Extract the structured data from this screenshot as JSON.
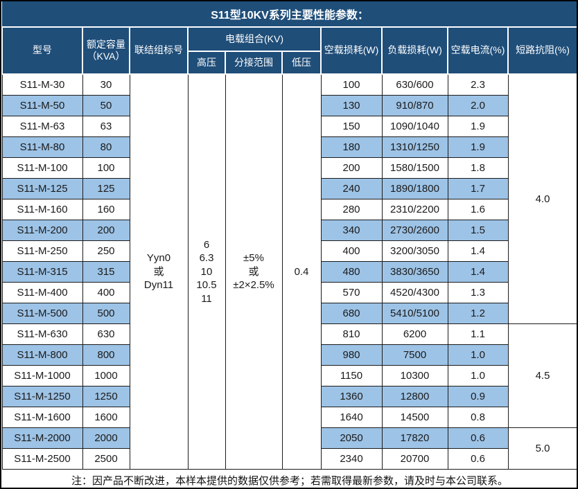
{
  "title": "S11型10KV系列主要性能参数：",
  "header": {
    "model": "型号",
    "capacity_line1": "额定容量",
    "capacity_line2": "（KVA）",
    "connection": "联结组标号",
    "voltage_group": "电载组合(KV)",
    "hv": "高压",
    "tap_range": "分接范围",
    "lv": "低压",
    "no_load_loss": "空载损耗(W)",
    "load_loss": "负载损耗(W)",
    "no_load_current": "空载电流(%)",
    "impedance": "短路抗阻(%)"
  },
  "merged": {
    "connection_lines": [
      "Yyn0",
      "或",
      "Dyn11"
    ],
    "hv_lines": [
      "6",
      "6.3",
      "10",
      "10.5",
      "11"
    ],
    "tap_lines": [
      "±5%",
      "或",
      "±2×2.5%"
    ],
    "lv": "0.4"
  },
  "impedance_groups": [
    {
      "value": "4.0",
      "rows": 12
    },
    {
      "value": "4.5",
      "rows": 5
    },
    {
      "value": "5.0",
      "rows": 2
    }
  ],
  "rows": [
    {
      "model": "S11-M-30",
      "capacity": "30",
      "no_load_loss": "100",
      "load_loss": "630/600",
      "no_load_current": "2.3",
      "highlight": false
    },
    {
      "model": "S11-M-50",
      "capacity": "50",
      "no_load_loss": "130",
      "load_loss": "910/870",
      "no_load_current": "2.0",
      "highlight": true
    },
    {
      "model": "S11-M-63",
      "capacity": "63",
      "no_load_loss": "150",
      "load_loss": "1090/1040",
      "no_load_current": "1.9",
      "highlight": false
    },
    {
      "model": "S11-M-80",
      "capacity": "80",
      "no_load_loss": "180",
      "load_loss": "1310/1250",
      "no_load_current": "1.9",
      "highlight": true
    },
    {
      "model": "S11-M-100",
      "capacity": "100",
      "no_load_loss": "200",
      "load_loss": "1580/1500",
      "no_load_current": "1.8",
      "highlight": false
    },
    {
      "model": "S11-M-125",
      "capacity": "125",
      "no_load_loss": "240",
      "load_loss": "1890/1800",
      "no_load_current": "1.7",
      "highlight": true
    },
    {
      "model": "S11-M-160",
      "capacity": "160",
      "no_load_loss": "280",
      "load_loss": "2310/2200",
      "no_load_current": "1.6",
      "highlight": false
    },
    {
      "model": "S11-M-200",
      "capacity": "200",
      "no_load_loss": "340",
      "load_loss": "2730/2600",
      "no_load_current": "1.5",
      "highlight": true
    },
    {
      "model": "S11-M-250",
      "capacity": "250",
      "no_load_loss": "400",
      "load_loss": "3200/3050",
      "no_load_current": "1.4",
      "highlight": false
    },
    {
      "model": "S11-M-315",
      "capacity": "315",
      "no_load_loss": "480",
      "load_loss": "3830/3650",
      "no_load_current": "1.4",
      "highlight": true
    },
    {
      "model": "S11-M-400",
      "capacity": "400",
      "no_load_loss": "570",
      "load_loss": "4520/4300",
      "no_load_current": "1.3",
      "highlight": false
    },
    {
      "model": "S11-M-500",
      "capacity": "500",
      "no_load_loss": "680",
      "load_loss": "5410/5100",
      "no_load_current": "1.2",
      "highlight": true
    },
    {
      "model": "S11-M-630",
      "capacity": "630",
      "no_load_loss": "810",
      "load_loss": "6200",
      "no_load_current": "1.1",
      "highlight": false
    },
    {
      "model": "S11-M-800",
      "capacity": "800",
      "no_load_loss": "980",
      "load_loss": "7500",
      "no_load_current": "1.0",
      "highlight": true
    },
    {
      "model": "S11-M-1000",
      "capacity": "1000",
      "no_load_loss": "1150",
      "load_loss": "10300",
      "no_load_current": "1.0",
      "highlight": false
    },
    {
      "model": "S11-M-1250",
      "capacity": "1250",
      "no_load_loss": "1360",
      "load_loss": "12800",
      "no_load_current": "0.9",
      "highlight": true
    },
    {
      "model": "S11-M-1600",
      "capacity": "1600",
      "no_load_loss": "1640",
      "load_loss": "14500",
      "no_load_current": "0.8",
      "highlight": false
    },
    {
      "model": "S11-M-2000",
      "capacity": "2000",
      "no_load_loss": "2050",
      "load_loss": "17820",
      "no_load_current": "0.6",
      "highlight": true
    },
    {
      "model": "S11-M-2500",
      "capacity": "2500",
      "no_load_loss": "2340",
      "load_loss": "20700",
      "no_load_current": "0.6",
      "highlight": false
    }
  ],
  "note": "注：因产品不断改进，本样本提供的数据仅供参考；若需取得最新参数，请及时与本公司联系。",
  "colors": {
    "header_bg": "#1F4E79",
    "header_text": "#FFFFFF",
    "row_highlight": "#9DC3E6",
    "body_border": "#1A1A1A",
    "header_divider": "#FFFFFF"
  }
}
